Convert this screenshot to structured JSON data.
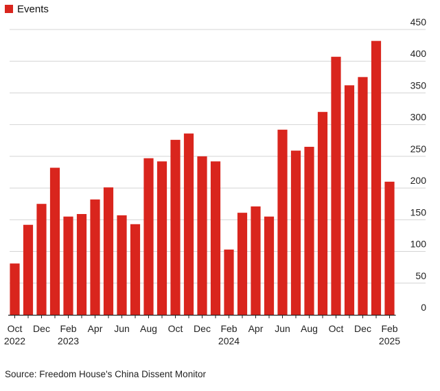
{
  "legend": {
    "label": "Events",
    "color": "#d9251d"
  },
  "source": "Source: Freedom House's China Dissent Monitor",
  "colors": {
    "bar": "#d9251d",
    "grid": "#d4d4d4",
    "axis": "#222222"
  },
  "chart_data": {
    "type": "bar",
    "categories": [
      "Oct 2022",
      "Nov 2022",
      "Dec 2022",
      "Jan 2023",
      "Feb 2023",
      "Mar 2023",
      "Apr 2023",
      "May 2023",
      "Jun 2023",
      "Jul 2023",
      "Aug 2023",
      "Sep 2023",
      "Oct 2023",
      "Nov 2023",
      "Dec 2023",
      "Jan 2024",
      "Feb 2024",
      "Mar 2024",
      "Apr 2024",
      "May 2024",
      "Jun 2024",
      "Jul 2024",
      "Aug 2024",
      "Sep 2024",
      "Oct 2024",
      "Nov 2024",
      "Dec 2024",
      "Jan 2025",
      "Feb 2025"
    ],
    "series": [
      {
        "name": "Events",
        "values": [
          81,
          142,
          175,
          232,
          155,
          159,
          182,
          201,
          157,
          143,
          247,
          242,
          276,
          286,
          250,
          242,
          103,
          161,
          171,
          155,
          292,
          259,
          265,
          320,
          407,
          362,
          375,
          432,
          210
        ]
      }
    ],
    "ylim": [
      0,
      450
    ],
    "yticks": [
      0,
      50,
      100,
      150,
      200,
      250,
      300,
      350,
      400,
      450
    ],
    "xtick_labels": [
      {
        "index": 0,
        "line1": "Oct",
        "line2": "2022"
      },
      {
        "index": 2,
        "line1": "Dec",
        "line2": ""
      },
      {
        "index": 4,
        "line1": "Feb",
        "line2": "2023"
      },
      {
        "index": 6,
        "line1": "Apr",
        "line2": ""
      },
      {
        "index": 8,
        "line1": "Jun",
        "line2": ""
      },
      {
        "index": 10,
        "line1": "Aug",
        "line2": ""
      },
      {
        "index": 12,
        "line1": "Oct",
        "line2": ""
      },
      {
        "index": 14,
        "line1": "Dec",
        "line2": ""
      },
      {
        "index": 16,
        "line1": "Feb",
        "line2": "2024"
      },
      {
        "index": 18,
        "line1": "Apr",
        "line2": ""
      },
      {
        "index": 20,
        "line1": "Jun",
        "line2": ""
      },
      {
        "index": 22,
        "line1": "Aug",
        "line2": ""
      },
      {
        "index": 24,
        "line1": "Oct",
        "line2": ""
      },
      {
        "index": 26,
        "line1": "Dec",
        "line2": ""
      },
      {
        "index": 28,
        "line1": "Feb",
        "line2": "2025"
      }
    ],
    "grid": true,
    "y_axis_side": "right",
    "legend_position": "top-left"
  }
}
